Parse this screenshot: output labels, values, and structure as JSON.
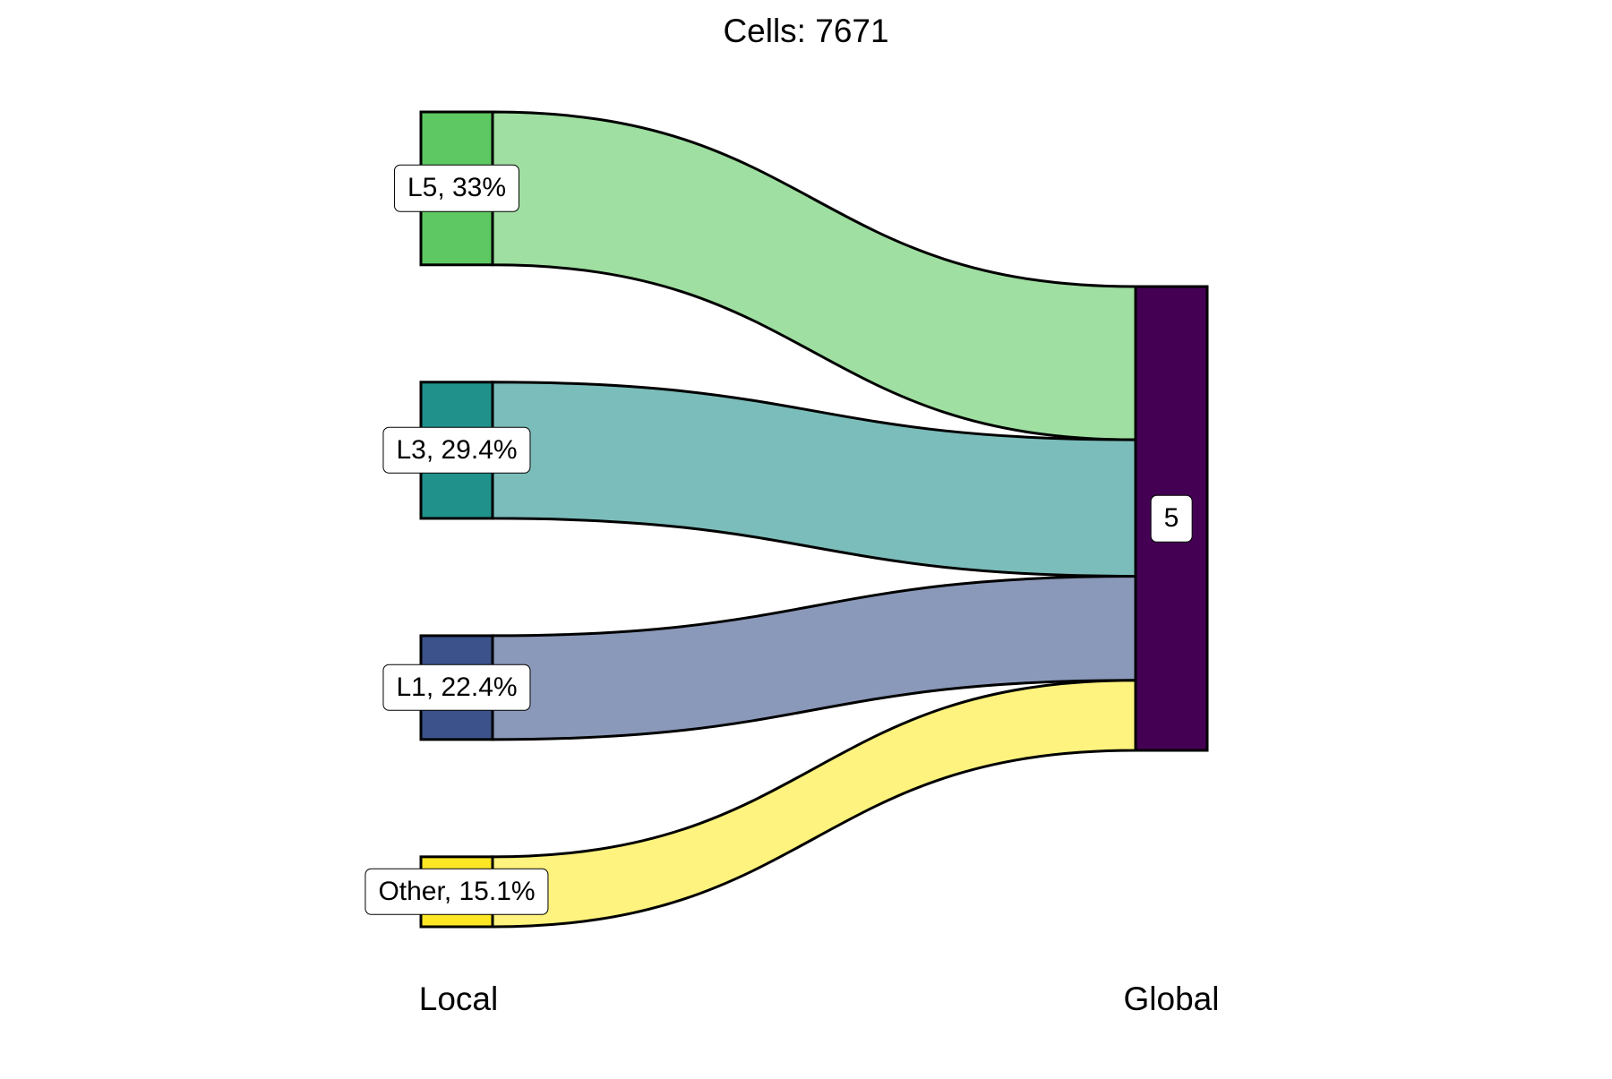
{
  "chart_data": {
    "type": "sankey",
    "title": "Cells:  7671",
    "axes": [
      {
        "name": "Local"
      },
      {
        "name": "Global"
      }
    ],
    "left_nodes": [
      {
        "id": "L5",
        "label": "L5, 33%",
        "percent": 33.0,
        "color": "#5ec962"
      },
      {
        "id": "L3",
        "label": "L3, 29.4%",
        "percent": 29.4,
        "color": "#21918c"
      },
      {
        "id": "L1",
        "label": "L1, 22.4%",
        "percent": 22.4,
        "color": "#3b528b"
      },
      {
        "id": "Other",
        "label": "Other, 15.1%",
        "percent": 15.1,
        "color": "#fde725"
      }
    ],
    "right_nodes": [
      {
        "id": "5",
        "label": "5",
        "percent": 100,
        "color": "#440154"
      }
    ],
    "flows": [
      {
        "from": "L5",
        "to": "5",
        "percent": 33.0,
        "color": "#9fdfa1"
      },
      {
        "from": "L3",
        "to": "5",
        "percent": 29.4,
        "color": "#7bbdbb"
      },
      {
        "from": "L1",
        "to": "5",
        "percent": 22.4,
        "color": "#8a99b9"
      },
      {
        "from": "Other",
        "to": "5",
        "percent": 15.1,
        "color": "#fef37e"
      }
    ]
  }
}
